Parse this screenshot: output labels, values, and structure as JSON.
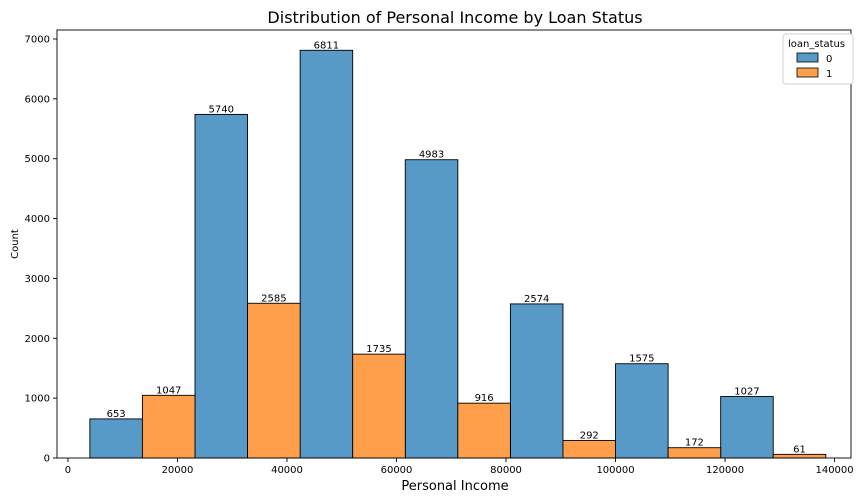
{
  "chart_data": {
    "type": "bar",
    "title": "Distribution of Personal Income by Loan Status",
    "xlabel": "Personal Income",
    "ylabel": "Count",
    "xlim": [
      -2000,
      143000
    ],
    "ylim": [
      0,
      7150
    ],
    "xticks": [
      0,
      20000,
      40000,
      60000,
      80000,
      100000,
      120000,
      140000
    ],
    "yticks": [
      0,
      1000,
      2000,
      3000,
      4000,
      5000,
      6000,
      7000
    ],
    "bin_width": 9600,
    "grid": false,
    "legend": {
      "title": "loan_status",
      "placement": "top-right"
    },
    "series": [
      {
        "name": "0",
        "color": "#5799c7",
        "bins": [
          {
            "x0": 4000,
            "x1": 13600,
            "value": 653
          },
          {
            "x0": 23200,
            "x1": 32800,
            "value": 5740
          },
          {
            "x0": 42400,
            "x1": 52000,
            "value": 6811
          },
          {
            "x0": 61600,
            "x1": 71200,
            "value": 4983
          },
          {
            "x0": 80800,
            "x1": 90400,
            "value": 2574
          },
          {
            "x0": 100000,
            "x1": 109600,
            "value": 1575
          },
          {
            "x0": 119200,
            "x1": 128800,
            "value": 1027
          }
        ]
      },
      {
        "name": "1",
        "color": "#ff9f4b",
        "bins": [
          {
            "x0": 13600,
            "x1": 23200,
            "value": 1047
          },
          {
            "x0": 32800,
            "x1": 42400,
            "value": 2585
          },
          {
            "x0": 52000,
            "x1": 61600,
            "value": 1735
          },
          {
            "x0": 71200,
            "x1": 80800,
            "value": 916
          },
          {
            "x0": 90400,
            "x1": 100000,
            "value": 292
          },
          {
            "x0": 109600,
            "x1": 119200,
            "value": 172
          },
          {
            "x0": 128800,
            "x1": 138400,
            "value": 61
          }
        ]
      }
    ]
  }
}
